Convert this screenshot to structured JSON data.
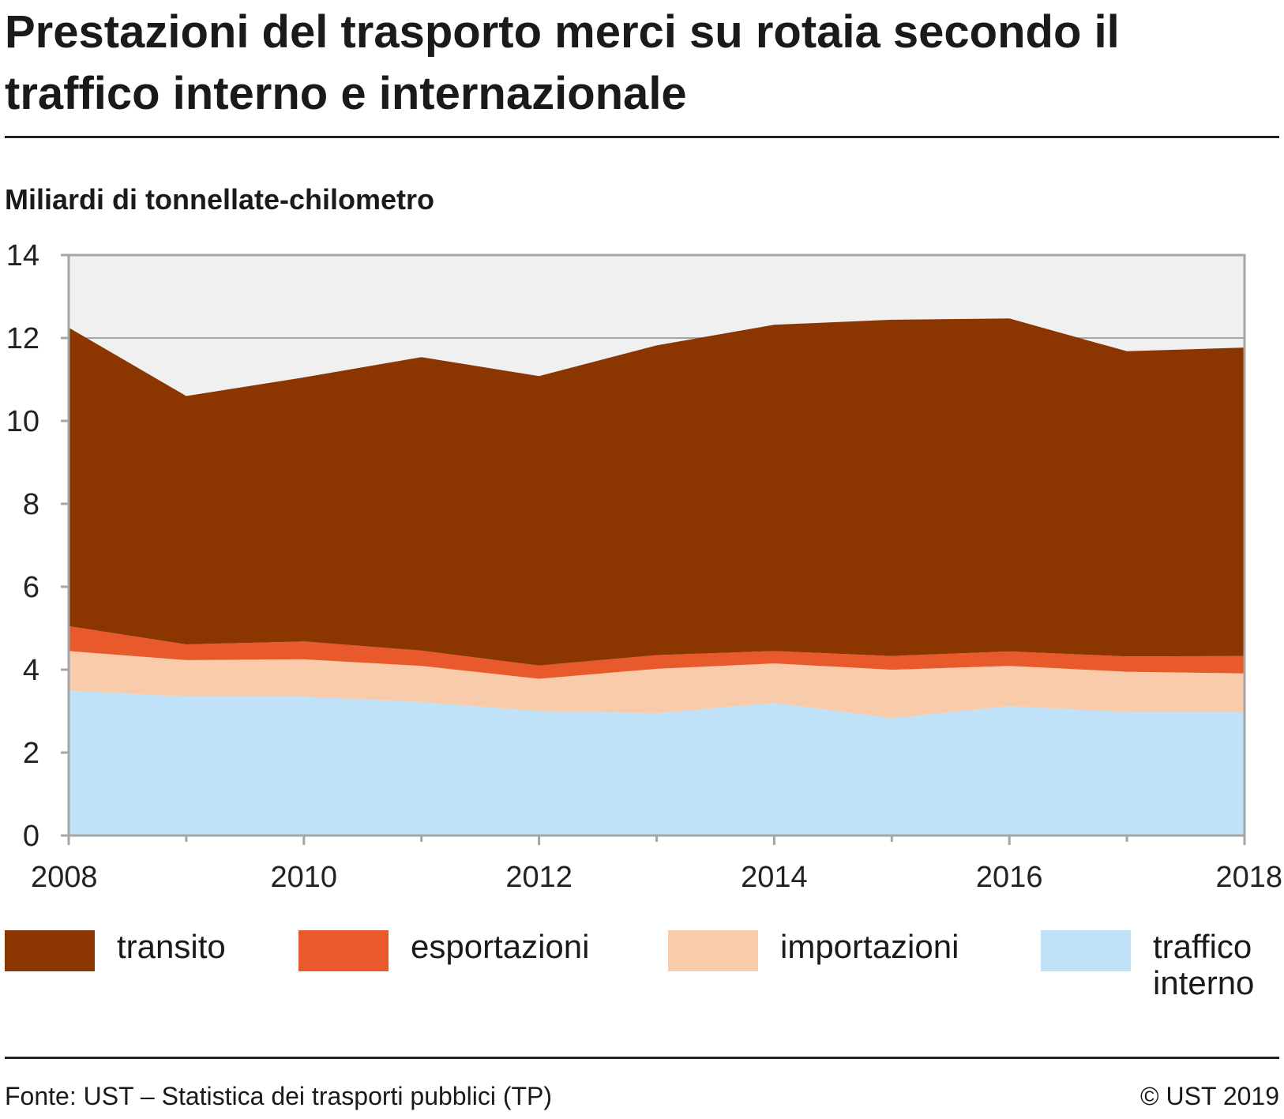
{
  "title": "Prestazioni del trasporto merci su rotaia secondo il traffico interno e internazionale",
  "unit_label": "Miliardi di tonnellate-chilometro",
  "source": "Fonte: UST – Statistica dei trasporti pubblici (TP)",
  "copyright": "© UST 2019",
  "legend": [
    {
      "label": "transito",
      "color": "#8b3600"
    },
    {
      "label": "esportazioni",
      "color": "#e85a2c"
    },
    {
      "label": "importazioni",
      "color": "#f8cbab"
    },
    {
      "label": "traffico\ninterno",
      "color": "#bfe2f8"
    }
  ],
  "chart_data": {
    "type": "area",
    "stacked": true,
    "x": [
      2008,
      2009,
      2010,
      2011,
      2012,
      2013,
      2014,
      2015,
      2016,
      2017,
      2018
    ],
    "x_ticks": [
      2008,
      2010,
      2012,
      2014,
      2016,
      2018
    ],
    "y_ticks": [
      0,
      2,
      4,
      6,
      8,
      10,
      12,
      14
    ],
    "ylim": [
      0,
      14
    ],
    "xlim": [
      2008,
      2018
    ],
    "grid": "horizontal",
    "background": "#f0f0f0",
    "legend_position": "bottom",
    "series": [
      {
        "name": "traffico interno",
        "color": "#bfe2f8",
        "values": [
          3.5,
          3.35,
          3.35,
          3.22,
          3.0,
          2.95,
          3.2,
          2.83,
          3.12,
          2.98,
          2.98
        ]
      },
      {
        "name": "importazioni",
        "color": "#f8cbab",
        "values": [
          0.95,
          0.88,
          0.9,
          0.87,
          0.78,
          1.07,
          0.95,
          1.17,
          0.97,
          0.97,
          0.93
        ]
      },
      {
        "name": "esportazioni",
        "color": "#e85a2c",
        "values": [
          0.6,
          0.38,
          0.43,
          0.37,
          0.32,
          0.33,
          0.3,
          0.33,
          0.35,
          0.37,
          0.42
        ]
      },
      {
        "name": "transito",
        "color": "#8b3600",
        "values": [
          7.2,
          5.99,
          6.37,
          7.08,
          6.98,
          7.47,
          7.87,
          8.11,
          8.03,
          7.36,
          7.44
        ]
      }
    ]
  }
}
